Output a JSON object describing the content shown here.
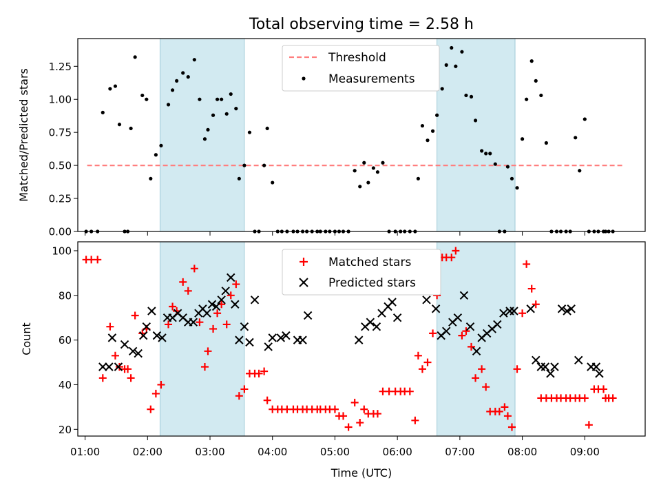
{
  "figure": {
    "title": "Total observing time = 2.58 h"
  },
  "chart_data": [
    {
      "type": "scatter",
      "ylabel": "Matched/Predicted stars",
      "xlabel": "",
      "xlim": [
        "00:53",
        "09:58"
      ],
      "ylim": [
        0,
        1.46
      ],
      "yticks": [
        "0.00",
        "0.25",
        "0.50",
        "0.75",
        "1.00",
        "1.25"
      ],
      "shaded_spans": [
        [
          "02:12",
          "03:33"
        ],
        [
          "06:38",
          "07:53"
        ]
      ],
      "shade_color": "#add8e6",
      "legend": {
        "position": "top-center"
      },
      "series": [
        {
          "name": "Threshold",
          "style": "dashed-line",
          "color": "#ff7f7f",
          "x": [
            "01:02",
            "09:36"
          ],
          "y": [
            0.5,
            0.5
          ]
        },
        {
          "name": "Measurements",
          "style": "dot",
          "color": "#000000",
          "x": [
            "01:01",
            "01:06",
            "01:12",
            "01:17",
            "01:24",
            "01:29",
            "01:33",
            "01:38",
            "01:41",
            "01:44",
            "01:48",
            "01:55",
            "01:59",
            "02:03",
            "02:08",
            "02:13",
            "02:20",
            "02:24",
            "02:28",
            "02:34",
            "02:39",
            "02:45",
            "02:50",
            "02:55",
            "02:58",
            "03:03",
            "03:07",
            "03:11",
            "03:16",
            "03:20",
            "03:25",
            "03:28",
            "03:33",
            "03:38",
            "03:43",
            "03:47",
            "03:52",
            "03:55",
            "04:00",
            "04:05",
            "04:09",
            "04:14",
            "04:20",
            "04:24",
            "04:29",
            "04:33",
            "04:38",
            "04:43",
            "04:46",
            "04:51",
            "04:55",
            "05:00",
            "05:04",
            "05:08",
            "05:13",
            "05:19",
            "05:24",
            "05:28",
            "05:32",
            "05:37",
            "05:41",
            "05:46",
            "05:52",
            "05:58",
            "06:03",
            "06:07",
            "06:12",
            "06:17",
            "06:20",
            "06:24",
            "06:29",
            "06:34",
            "06:38",
            "06:43",
            "06:47",
            "06:52",
            "06:56",
            "07:02",
            "07:06",
            "07:11",
            "07:15",
            "07:21",
            "07:25",
            "07:29",
            "07:34",
            "07:38",
            "07:43",
            "07:46",
            "07:50",
            "07:55",
            "08:00",
            "08:04",
            "08:09",
            "08:13",
            "08:18",
            "08:23",
            "08:28",
            "08:33",
            "08:37",
            "08:42",
            "08:46",
            "08:51",
            "08:55",
            "09:00",
            "09:04",
            "09:09",
            "09:13",
            "09:18",
            "09:20",
            "09:23",
            "09:27"
          ],
          "y": [
            0.0,
            0.0,
            0.0,
            0.9,
            1.08,
            1.1,
            0.81,
            0.0,
            0.0,
            0.78,
            1.32,
            1.03,
            1.0,
            0.4,
            0.58,
            0.65,
            0.96,
            1.07,
            1.14,
            1.2,
            1.17,
            1.3,
            1.0,
            0.7,
            0.77,
            0.88,
            1.0,
            1.0,
            0.89,
            1.04,
            0.93,
            0.4,
            0.5,
            0.75,
            0.0,
            0.0,
            0.5,
            0.78,
            0.37,
            0.0,
            0.0,
            0.0,
            0.0,
            0.0,
            0.0,
            0.0,
            0.0,
            0.0,
            0.0,
            0.0,
            0.0,
            0.0,
            0.0,
            0.0,
            0.0,
            0.46,
            0.34,
            0.52,
            0.37,
            0.48,
            0.45,
            0.52,
            0.0,
            0.0,
            0.0,
            0.0,
            0.0,
            0.0,
            0.4,
            0.8,
            0.69,
            0.76,
            0.88,
            1.08,
            1.26,
            1.39,
            1.25,
            1.36,
            1.03,
            1.02,
            0.84,
            0.61,
            0.59,
            0.59,
            0.51,
            0.0,
            0.0,
            0.49,
            0.4,
            0.33,
            0.7,
            1.0,
            1.29,
            1.14,
            1.03,
            0.67,
            0.0,
            0.0,
            0.0,
            0.0,
            0.0,
            0.71,
            0.46,
            0.85,
            0.0,
            0.0,
            0.0,
            0.0,
            0.0,
            0.0,
            0.0
          ]
        }
      ]
    },
    {
      "type": "scatter",
      "ylabel": "Count",
      "xlabel": "Time (UTC)",
      "xlim": [
        "00:53",
        "09:58"
      ],
      "ylim": [
        17,
        104
      ],
      "xticks": [
        "01:00",
        "02:00",
        "03:00",
        "04:00",
        "05:00",
        "06:00",
        "07:00",
        "08:00",
        "09:00"
      ],
      "yticks": [
        "20",
        "40",
        "60",
        "80",
        "100"
      ],
      "shaded_spans": [
        [
          "02:12",
          "03:33"
        ],
        [
          "06:38",
          "07:53"
        ]
      ],
      "shade_color": "#add8e6",
      "legend": {
        "position": "top-center"
      },
      "series": [
        {
          "name": "Matched stars",
          "marker": "plus",
          "color": "#ff0000",
          "x": [
            "01:01",
            "01:06",
            "01:12",
            "01:17",
            "01:24",
            "01:29",
            "01:33",
            "01:38",
            "01:41",
            "01:44",
            "01:48",
            "01:55",
            "01:59",
            "02:03",
            "02:08",
            "02:13",
            "02:20",
            "02:24",
            "02:28",
            "02:34",
            "02:39",
            "02:45",
            "02:50",
            "02:55",
            "02:58",
            "03:03",
            "03:07",
            "03:11",
            "03:16",
            "03:20",
            "03:25",
            "03:28",
            "03:33",
            "03:38",
            "03:43",
            "03:47",
            "03:52",
            "03:55",
            "04:00",
            "04:05",
            "04:09",
            "04:14",
            "04:20",
            "04:24",
            "04:29",
            "04:33",
            "04:38",
            "04:43",
            "04:46",
            "04:51",
            "04:55",
            "05:00",
            "05:04",
            "05:08",
            "05:13",
            "05:19",
            "05:24",
            "05:28",
            "05:32",
            "05:37",
            "05:41",
            "05:46",
            "05:52",
            "05:58",
            "06:03",
            "06:07",
            "06:12",
            "06:17",
            "06:20",
            "06:24",
            "06:29",
            "06:34",
            "06:38",
            "06:43",
            "06:47",
            "06:52",
            "06:56",
            "07:02",
            "07:06",
            "07:11",
            "07:15",
            "07:21",
            "07:25",
            "07:29",
            "07:34",
            "07:38",
            "07:43",
            "07:46",
            "07:50",
            "07:55",
            "08:00",
            "08:04",
            "08:09",
            "08:13",
            "08:18",
            "08:23",
            "08:28",
            "08:33",
            "08:37",
            "08:42",
            "08:46",
            "08:51",
            "08:55",
            "09:00",
            "09:04",
            "09:09",
            "09:13",
            "09:18",
            "09:20",
            "09:23",
            "09:27"
          ],
          "y": [
            96,
            96,
            96,
            43,
            66,
            53,
            48,
            47,
            47,
            43,
            71,
            63,
            65,
            29,
            36,
            40,
            67,
            75,
            73,
            86,
            82,
            92,
            68,
            48,
            55,
            65,
            72,
            76,
            67,
            80,
            85,
            35,
            38,
            45,
            45,
            45,
            46,
            33,
            29,
            29,
            29,
            29,
            29,
            29,
            29,
            29,
            29,
            29,
            29,
            29,
            29,
            29,
            26,
            26,
            21,
            32,
            23,
            29,
            27,
            27,
            27,
            37,
            37,
            37,
            37,
            37,
            37,
            24,
            53,
            47,
            50,
            63,
            80,
            97,
            97,
            97,
            100,
            62,
            64,
            57,
            43,
            47,
            39,
            28,
            28,
            28,
            30,
            26,
            21,
            47,
            72,
            94,
            83,
            76,
            34,
            34,
            34,
            34,
            34,
            34,
            34,
            34,
            34,
            34,
            22,
            38,
            38,
            38,
            34,
            34,
            34
          ]
        },
        {
          "name": "Predicted stars",
          "marker": "x",
          "color": "#000000",
          "x": [
            "01:17",
            "01:23",
            "01:26",
            "01:32",
            "01:38",
            "01:46",
            "01:51",
            "01:56",
            "01:59",
            "02:04",
            "02:09",
            "02:14",
            "02:19",
            "02:24",
            "02:29",
            "02:34",
            "02:39",
            "02:44",
            "02:49",
            "02:53",
            "02:57",
            "03:02",
            "03:06",
            "03:11",
            "03:15",
            "03:20",
            "03:24",
            "03:28",
            "03:33",
            "03:38",
            "03:43",
            "03:56",
            "04:00",
            "04:08",
            "04:13",
            "04:24",
            "04:29",
            "04:34",
            "05:23",
            "05:29",
            "05:34",
            "05:40",
            "05:45",
            "05:51",
            "05:55",
            "06:00",
            "06:28",
            "06:37",
            "06:42",
            "06:47",
            "06:53",
            "06:58",
            "07:04",
            "07:10",
            "07:16",
            "07:21",
            "07:26",
            "07:31",
            "07:36",
            "07:42",
            "07:48",
            "07:52",
            "08:08",
            "08:13",
            "08:18",
            "08:22",
            "08:27",
            "08:31",
            "08:38",
            "08:43",
            "08:47",
            "08:54",
            "09:06",
            "09:11",
            "09:14"
          ],
          "y": [
            48,
            48,
            61,
            48,
            58,
            55,
            54,
            62,
            66,
            73,
            62,
            61,
            70,
            70,
            72,
            70,
            68,
            68,
            72,
            74,
            72,
            76,
            75,
            78,
            82,
            88,
            76,
            60,
            66,
            59,
            78,
            57,
            61,
            61,
            62,
            60,
            60,
            71,
            60,
            66,
            68,
            66,
            72,
            75,
            77,
            70,
            78,
            74,
            62,
            64,
            68,
            70,
            80,
            66,
            55,
            61,
            63,
            65,
            67,
            72,
            73,
            73,
            74,
            51,
            48,
            48,
            45,
            48,
            74,
            73,
            74,
            51,
            48,
            48,
            45
          ]
        }
      ]
    }
  ]
}
